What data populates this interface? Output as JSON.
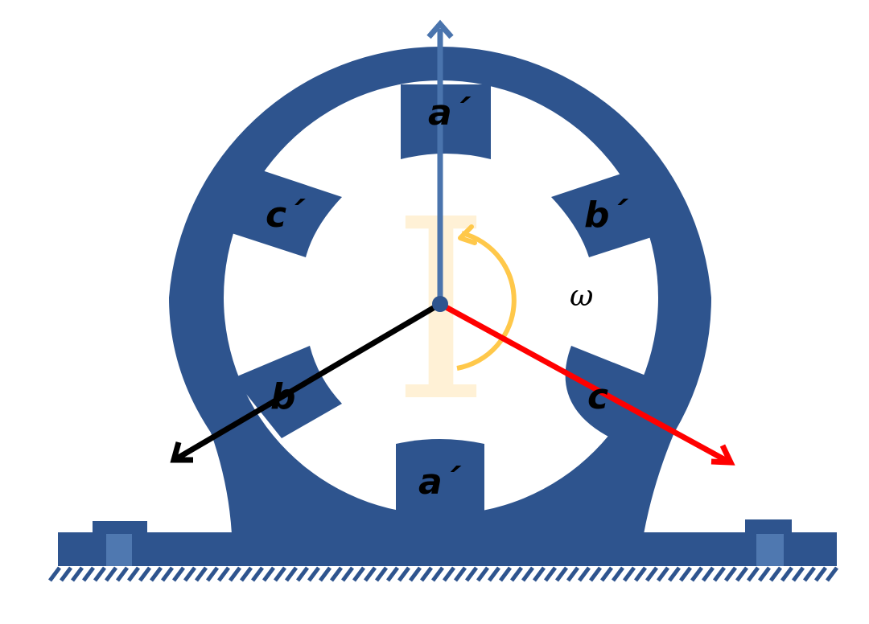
{
  "diagram": {
    "colors": {
      "stator": "#2e548e",
      "base_slot": "#4f78b0",
      "axis_a": "#4a74ad",
      "axis_b": "#000000",
      "axis_c": "#ff0000",
      "rotation_arrow": "#ffc84a",
      "rotor": "#fff1d6",
      "background": "#ffffff"
    },
    "rotor_symbol": "I",
    "rotation_label": "ω",
    "pole_labels": {
      "a_top": "a´",
      "b_prime": "b´",
      "c_prime": "c´",
      "b": "b",
      "c": "c",
      "a_bottom": "a´"
    }
  }
}
